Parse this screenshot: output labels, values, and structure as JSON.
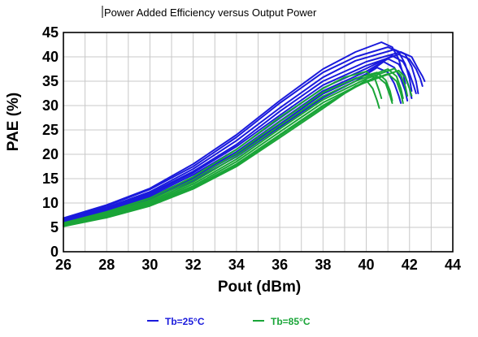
{
  "chart_data": {
    "type": "line",
    "title": "Power Added Efficiency versus Output Power",
    "xlabel": "Pout (dBm)",
    "ylabel": "PAE (%)",
    "xlim": [
      26,
      44
    ],
    "ylim": [
      0,
      45
    ],
    "x_ticks": [
      "26",
      "28",
      "30",
      "32",
      "34",
      "36",
      "38",
      "40",
      "42",
      "44"
    ],
    "y_ticks": [
      "0",
      "5",
      "10",
      "15",
      "20",
      "25",
      "30",
      "35",
      "40",
      "45"
    ],
    "grid": true,
    "legend_position": "bottom",
    "legend": [
      {
        "label": "Tb=25°C",
        "color": "#1a1adc"
      },
      {
        "label": "Tb=85°C",
        "color": "#1aa538"
      }
    ],
    "series": [
      {
        "group": "Tb=25°C",
        "color": "#1a1adc",
        "x": [
          26,
          28,
          30,
          32,
          34,
          36,
          38,
          39.5,
          40.7,
          41.2,
          41.5,
          41.7,
          41.8
        ],
        "y": [
          6.9,
          9.6,
          13.0,
          18.0,
          24.0,
          31.0,
          37.5,
          41.0,
          43.0,
          42.0,
          39.5,
          36.5,
          34.5
        ]
      },
      {
        "group": "Tb=25°C",
        "color": "#1a1adc",
        "x": [
          26,
          28,
          30,
          32,
          34,
          36,
          38,
          39.5,
          41.0,
          41.5,
          41.8,
          42.0,
          42.1
        ],
        "y": [
          6.8,
          9.4,
          12.8,
          17.5,
          23.5,
          30.5,
          36.8,
          40.0,
          42.0,
          41.0,
          38.5,
          35.5,
          33.0
        ]
      },
      {
        "group": "Tb=25°C",
        "color": "#1a1adc",
        "x": [
          26,
          28,
          30,
          32,
          34,
          36,
          38,
          39.5,
          41.3,
          41.8,
          42.1,
          42.3,
          42.4
        ],
        "y": [
          6.6,
          9.1,
          12.3,
          17.0,
          22.8,
          29.5,
          35.8,
          39.2,
          41.5,
          40.5,
          38.0,
          35.0,
          32.5
        ]
      },
      {
        "group": "Tb=25°C",
        "color": "#1a1adc",
        "x": [
          26,
          28,
          30,
          32,
          34,
          36,
          38,
          40.0,
          41.6,
          42.1,
          42.4,
          42.6,
          42.7
        ],
        "y": [
          6.5,
          8.9,
          12.0,
          16.5,
          22.0,
          28.8,
          35.0,
          39.0,
          41.0,
          40.0,
          37.5,
          36.0,
          35.0
        ]
      },
      {
        "group": "Tb=25°C",
        "color": "#1a1adc",
        "x": [
          26,
          28,
          30,
          32,
          34,
          36,
          38,
          40.0,
          41.5,
          42.0,
          42.3,
          42.5,
          42.6
        ],
        "y": [
          6.4,
          8.8,
          11.8,
          16.2,
          21.6,
          28.0,
          34.2,
          38.2,
          40.5,
          39.5,
          37.5,
          35.5,
          34.0
        ]
      },
      {
        "group": "Tb=25°C",
        "color": "#1a1adc",
        "x": [
          26,
          28,
          30,
          32,
          34,
          36,
          38,
          40.0,
          41.2,
          41.7,
          42.0,
          42.2,
          42.3
        ],
        "y": [
          6.3,
          8.6,
          11.5,
          15.8,
          21.0,
          27.4,
          33.6,
          37.6,
          40.2,
          39.0,
          36.5,
          34.0,
          32.5
        ]
      },
      {
        "group": "Tb=25°C",
        "color": "#1a1adc",
        "x": [
          26,
          28,
          30,
          32,
          34,
          36,
          38,
          40.0,
          41.0,
          41.5,
          41.8,
          42.0,
          42.1
        ],
        "y": [
          6.1,
          8.4,
          11.2,
          15.3,
          20.5,
          26.8,
          33.0,
          37.0,
          39.6,
          38.5,
          36.0,
          33.5,
          31.5
        ]
      },
      {
        "group": "Tb=25°C",
        "color": "#1a1adc",
        "x": [
          26,
          28,
          30,
          32,
          34,
          36,
          38,
          40.0,
          40.8,
          41.3,
          41.6,
          41.8,
          41.9
        ],
        "y": [
          6.0,
          8.2,
          11.0,
          15.0,
          20.0,
          26.2,
          32.4,
          36.5,
          39.0,
          37.8,
          35.5,
          33.0,
          31.0
        ]
      },
      {
        "group": "Tb=25°C",
        "color": "#1a1adc",
        "x": [
          26,
          28,
          30,
          32,
          34,
          36,
          38,
          39.5,
          40.5,
          41.0,
          41.3,
          41.5,
          41.6
        ],
        "y": [
          5.9,
          8.0,
          10.8,
          14.6,
          19.5,
          25.6,
          31.6,
          35.0,
          37.8,
          36.8,
          34.5,
          32.0,
          30.5
        ]
      },
      {
        "group": "Tb=85°C",
        "color": "#1aa538",
        "x": [
          26,
          28,
          30,
          32,
          34,
          36,
          38,
          39.0,
          40.0,
          40.4,
          40.6,
          40.7
        ],
        "y": [
          5.9,
          8.2,
          11.0,
          15.4,
          21.0,
          27.6,
          33.5,
          35.8,
          37.0,
          35.5,
          33.0,
          31.5
        ]
      },
      {
        "group": "Tb=85°C",
        "color": "#1aa538",
        "x": [
          26,
          28,
          30,
          32,
          34,
          36,
          38,
          39.5,
          40.5,
          40.9,
          41.1,
          41.2
        ],
        "y": [
          5.7,
          7.9,
          10.6,
          14.8,
          20.2,
          26.7,
          32.7,
          35.6,
          36.8,
          35.2,
          33.0,
          31.0
        ]
      },
      {
        "group": "Tb=85°C",
        "color": "#1aa538",
        "x": [
          26,
          28,
          30,
          32,
          34,
          36,
          38,
          39.5,
          41.0,
          41.4,
          41.6,
          41.7
        ],
        "y": [
          5.6,
          7.7,
          10.3,
          14.3,
          19.6,
          25.9,
          31.9,
          35.0,
          37.5,
          36.0,
          33.5,
          31.5
        ]
      },
      {
        "group": "Tb=85°C",
        "color": "#1aa538",
        "x": [
          26,
          28,
          30,
          32,
          34,
          36,
          38,
          40.0,
          41.3,
          41.6,
          41.8,
          41.9
        ],
        "y": [
          5.5,
          7.5,
          10.0,
          13.9,
          19.0,
          25.2,
          31.2,
          35.5,
          37.6,
          36.2,
          34.0,
          32.0
        ]
      },
      {
        "group": "Tb=85°C",
        "color": "#1aa538",
        "x": [
          26,
          28,
          30,
          32,
          34,
          36,
          38,
          40.0,
          41.0,
          41.4,
          41.6,
          41.7
        ],
        "y": [
          5.4,
          7.3,
          9.8,
          13.5,
          18.5,
          24.6,
          30.6,
          35.0,
          36.5,
          35.0,
          32.5,
          30.5
        ]
      },
      {
        "group": "Tb=85°C",
        "color": "#1aa538",
        "x": [
          26,
          28,
          30,
          32,
          34,
          36,
          38,
          39.5,
          40.5,
          40.9,
          41.1,
          41.2
        ],
        "y": [
          5.3,
          7.2,
          9.6,
          13.2,
          18.0,
          24.0,
          30.0,
          33.8,
          36.0,
          34.5,
          32.0,
          30.5
        ]
      },
      {
        "group": "Tb=85°C",
        "color": "#1aa538",
        "x": [
          26,
          28,
          30,
          32,
          34,
          36,
          38,
          39.0,
          40.0,
          40.3,
          40.5,
          40.6
        ],
        "y": [
          5.2,
          7.0,
          9.4,
          12.9,
          17.5,
          23.4,
          29.4,
          32.5,
          35.2,
          33.5,
          31.0,
          29.5
        ]
      },
      {
        "group": "Tb=85°C",
        "color": "#1aa538",
        "x": [
          26,
          28,
          30,
          32,
          34,
          36,
          38,
          39.5,
          41.5,
          41.8,
          42.0,
          42.1
        ],
        "y": [
          5.3,
          7.1,
          9.5,
          13.0,
          17.8,
          23.8,
          29.8,
          34.0,
          37.2,
          35.8,
          33.5,
          32.0
        ]
      }
    ]
  }
}
